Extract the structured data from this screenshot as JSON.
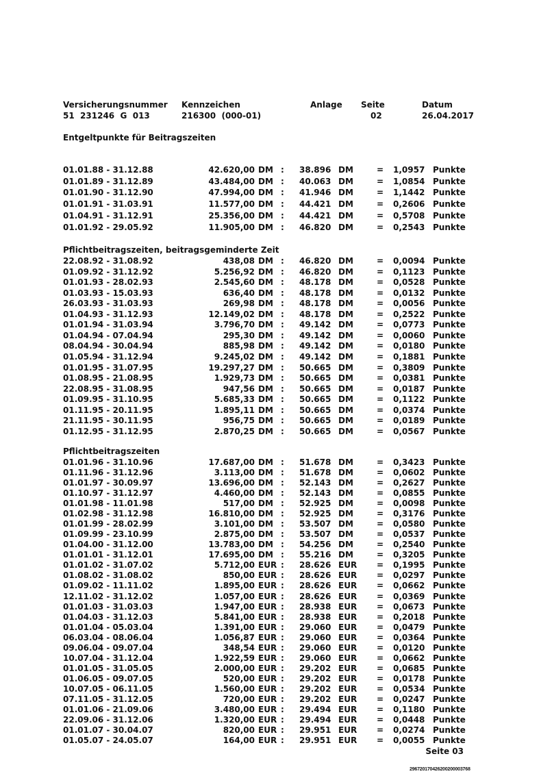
{
  "header": {
    "labels": {
      "insurance_number": "Versicherungsnummer",
      "code": "Kennzeichen",
      "attachment": "Anlage",
      "page": "Seite",
      "date": "Datum"
    },
    "values": {
      "insurance_number": "51  231246  G  013",
      "code": "216300  (000-01)",
      "attachment": "",
      "page": "02",
      "date": "26.04.2017"
    }
  },
  "title": "Entgeltpunkte für Beitragszeiten",
  "unit_label": "Punkte",
  "colon": ":",
  "equals": "=",
  "sections": [
    {
      "heading": "",
      "rows": [
        [
          "01.01.88 - 31.12.88",
          "42.620,00",
          "DM",
          "38.896",
          "DM",
          "1,0957"
        ],
        [
          "01.01.89 - 31.12.89",
          "43.484,00",
          "DM",
          "40.063",
          "DM",
          "1,0854"
        ],
        [
          "01.01.90 - 31.12.90",
          "47.994,00",
          "DM",
          "41.946",
          "DM",
          "1,1442"
        ],
        [
          "01.01.91 - 31.03.91",
          "11.577,00",
          "DM",
          "44.421",
          "DM",
          "0,2606"
        ],
        [
          "01.04.91 - 31.12.91",
          "25.356,00",
          "DM",
          "44.421",
          "DM",
          "0,5708"
        ],
        [
          "01.01.92 - 29.05.92",
          "11.905,00",
          "DM",
          "46.820",
          "DM",
          "0,2543"
        ]
      ]
    },
    {
      "heading": "Pflichtbeitragszeiten, beitragsgeminderte Zeit",
      "rows": [
        [
          "22.08.92 - 31.08.92",
          "438,08",
          "DM",
          "46.820",
          "DM",
          "0,0094"
        ],
        [
          "01.09.92 - 31.12.92",
          "5.256,92",
          "DM",
          "46.820",
          "DM",
          "0,1123"
        ],
        [
          "01.01.93 - 28.02.93",
          "2.545,60",
          "DM",
          "48.178",
          "DM",
          "0,0528"
        ],
        [
          "01.03.93 - 15.03.93",
          "636,40",
          "DM",
          "48.178",
          "DM",
          "0,0132"
        ],
        [
          "26.03.93 - 31.03.93",
          "269,98",
          "DM",
          "48.178",
          "DM",
          "0,0056"
        ],
        [
          "01.04.93 - 31.12.93",
          "12.149,02",
          "DM",
          "48.178",
          "DM",
          "0,2522"
        ],
        [
          "01.01.94 - 31.03.94",
          "3.796,70",
          "DM",
          "49.142",
          "DM",
          "0,0773"
        ],
        [
          "01.04.94 - 07.04.94",
          "295,30",
          "DM",
          "49.142",
          "DM",
          "0,0060"
        ],
        [
          "08.04.94 - 30.04.94",
          "885,98",
          "DM",
          "49.142",
          "DM",
          "0,0180"
        ],
        [
          "01.05.94 - 31.12.94",
          "9.245,02",
          "DM",
          "49.142",
          "DM",
          "0,1881"
        ],
        [
          "01.01.95 - 31.07.95",
          "19.297,27",
          "DM",
          "50.665",
          "DM",
          "0,3809"
        ],
        [
          "01.08.95 - 21.08.95",
          "1.929,73",
          "DM",
          "50.665",
          "DM",
          "0,0381"
        ],
        [
          "22.08.95 - 31.08.95",
          "947,56",
          "DM",
          "50.665",
          "DM",
          "0,0187"
        ],
        [
          "01.09.95 - 31.10.95",
          "5.685,33",
          "DM",
          "50.665",
          "DM",
          "0,1122"
        ],
        [
          "01.11.95 - 20.11.95",
          "1.895,11",
          "DM",
          "50.665",
          "DM",
          "0,0374"
        ],
        [
          "21.11.95 - 30.11.95",
          "956,75",
          "DM",
          "50.665",
          "DM",
          "0,0189"
        ],
        [
          "01.12.95 - 31.12.95",
          "2.870,25",
          "DM",
          "50.665",
          "DM",
          "0,0567"
        ]
      ]
    },
    {
      "heading": "Pflichtbeitragszeiten",
      "rows": [
        [
          "01.01.96 - 31.10.96",
          "17.687,00",
          "DM",
          "51.678",
          "DM",
          "0,3423"
        ],
        [
          "01.11.96 - 31.12.96",
          "3.113,00",
          "DM",
          "51.678",
          "DM",
          "0,0602"
        ],
        [
          "01.01.97 - 30.09.97",
          "13.696,00",
          "DM",
          "52.143",
          "DM",
          "0,2627"
        ],
        [
          "01.10.97 - 31.12.97",
          "4.460,00",
          "DM",
          "52.143",
          "DM",
          "0,0855"
        ],
        [
          "01.01.98 - 11.01.98",
          "517,00",
          "DM",
          "52.925",
          "DM",
          "0,0098"
        ],
        [
          "01.02.98 - 31.12.98",
          "16.810,00",
          "DM",
          "52.925",
          "DM",
          "0,3176"
        ],
        [
          "01.01.99 - 28.02.99",
          "3.101,00",
          "DM",
          "53.507",
          "DM",
          "0,0580"
        ],
        [
          "01.09.99 - 23.10.99",
          "2.875,00",
          "DM",
          "53.507",
          "DM",
          "0,0537"
        ],
        [
          "01.04.00 - 31.12.00",
          "13.783,00",
          "DM",
          "54.256",
          "DM",
          "0,2540"
        ],
        [
          "01.01.01 - 31.12.01",
          "17.695,00",
          "DM",
          "55.216",
          "DM",
          "0,3205"
        ],
        [
          "01.01.02 - 31.07.02",
          "5.712,00",
          "EUR",
          "28.626",
          "EUR",
          "0,1995"
        ],
        [
          "01.08.02 - 31.08.02",
          "850,00",
          "EUR",
          "28.626",
          "EUR",
          "0,0297"
        ],
        [
          "01.09.02 - 11.11.02",
          "1.895,00",
          "EUR",
          "28.626",
          "EUR",
          "0,0662"
        ],
        [
          "12.11.02 - 31.12.02",
          "1.057,00",
          "EUR",
          "28.626",
          "EUR",
          "0,0369"
        ],
        [
          "01.01.03 - 31.03.03",
          "1.947,00",
          "EUR",
          "28.938",
          "EUR",
          "0,0673"
        ],
        [
          "01.04.03 - 31.12.03",
          "5.841,00",
          "EUR",
          "28.938",
          "EUR",
          "0,2018"
        ],
        [
          "01.01.04 - 05.03.04",
          "1.391,00",
          "EUR",
          "29.060",
          "EUR",
          "0,0479"
        ],
        [
          "06.03.04 - 08.06.04",
          "1.056,87",
          "EUR",
          "29.060",
          "EUR",
          "0,0364"
        ],
        [
          "09.06.04 - 09.07.04",
          "348,54",
          "EUR",
          "29.060",
          "EUR",
          "0,0120"
        ],
        [
          "10.07.04 - 31.12.04",
          "1.922,59",
          "EUR",
          "29.060",
          "EUR",
          "0,0662"
        ],
        [
          "01.01.05 - 31.05.05",
          "2.000,00",
          "EUR",
          "29.202",
          "EUR",
          "0,0685"
        ],
        [
          "01.06.05 - 09.07.05",
          "520,00",
          "EUR",
          "29.202",
          "EUR",
          "0,0178"
        ],
        [
          "10.07.05 - 06.11.05",
          "1.560,00",
          "EUR",
          "29.202",
          "EUR",
          "0,0534"
        ],
        [
          "07.11.05 - 31.12.05",
          "720,00",
          "EUR",
          "29.202",
          "EUR",
          "0,0247"
        ],
        [
          "01.01.06 - 21.09.06",
          "3.480,00",
          "EUR",
          "29.494",
          "EUR",
          "0,1180"
        ],
        [
          "22.09.06 - 31.12.06",
          "1.320,00",
          "EUR",
          "29.494",
          "EUR",
          "0,0448"
        ],
        [
          "01.01.07 - 30.04.07",
          "820,00",
          "EUR",
          "29.951",
          "EUR",
          "0,0274"
        ],
        [
          "01.05.07 - 24.05.07",
          "164,00",
          "EUR",
          "29.951",
          "EUR",
          "0,0055"
        ]
      ]
    }
  ],
  "footer": {
    "next_page": "Seite 03",
    "barcode_number": "29672017042620020000376​8"
  }
}
